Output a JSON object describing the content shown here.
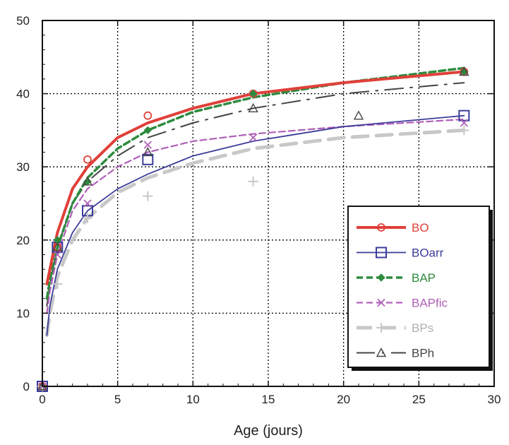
{
  "chart_data": {
    "type": "line",
    "title": "",
    "xlabel": "Age (jours)",
    "ylabel": "",
    "xlim": [
      0,
      30
    ],
    "ylim": [
      0,
      50
    ],
    "xticks": [
      0,
      5,
      10,
      15,
      20,
      25,
      30
    ],
    "yticks": [
      0,
      10,
      20,
      30,
      40,
      50
    ],
    "grid": true,
    "legend_position": "bottom-right",
    "series": [
      {
        "name": "BO",
        "color": "#e0403a",
        "dash": "solid",
        "marker": "circle",
        "points": [
          [
            0,
            0
          ],
          [
            1,
            19
          ],
          [
            3,
            31
          ],
          [
            7,
            37
          ],
          [
            14,
            40
          ],
          [
            28,
            43
          ]
        ],
        "fit": [
          [
            0.3,
            14
          ],
          [
            0.5,
            16
          ],
          [
            1,
            21
          ],
          [
            2,
            27
          ],
          [
            3,
            30
          ],
          [
            5,
            34
          ],
          [
            7,
            36
          ],
          [
            10,
            38
          ],
          [
            14,
            40
          ],
          [
            20,
            41.5
          ],
          [
            28,
            43
          ]
        ]
      },
      {
        "name": "BOarr",
        "color": "#3b3b9a",
        "dash": "solid",
        "marker": "square",
        "points": [
          [
            0,
            0
          ],
          [
            1,
            19
          ],
          [
            3,
            24
          ],
          [
            7,
            31
          ],
          [
            28,
            37
          ]
        ],
        "fit": [
          [
            0.3,
            7
          ],
          [
            0.5,
            11
          ],
          [
            1,
            16
          ],
          [
            2,
            21
          ],
          [
            3,
            24
          ],
          [
            5,
            27
          ],
          [
            7,
            29
          ],
          [
            10,
            31.5
          ],
          [
            14,
            33.5
          ],
          [
            20,
            35.5
          ],
          [
            28,
            37
          ]
        ]
      },
      {
        "name": "BAP",
        "color": "#2e8b3e",
        "dash": "dashed",
        "marker": "diamond",
        "points": [
          [
            0,
            0
          ],
          [
            1,
            20
          ],
          [
            3,
            28
          ],
          [
            7,
            35
          ],
          [
            14,
            40
          ],
          [
            28,
            43
          ]
        ],
        "fit": [
          [
            0.3,
            12
          ],
          [
            0.5,
            14.5
          ],
          [
            1,
            19
          ],
          [
            2,
            25
          ],
          [
            3,
            28.5
          ],
          [
            5,
            32.5
          ],
          [
            7,
            35
          ],
          [
            10,
            37.5
          ],
          [
            14,
            39.5
          ],
          [
            20,
            41.5
          ],
          [
            28,
            43.5
          ]
        ]
      },
      {
        "name": "BAPfic",
        "color": "#b060b8",
        "dash": "dashed",
        "marker": "cross",
        "points": [
          [
            0,
            0
          ],
          [
            1,
            18
          ],
          [
            3,
            25
          ],
          [
            7,
            33
          ],
          [
            14,
            34
          ],
          [
            28,
            36
          ]
        ],
        "fit": [
          [
            0.3,
            10
          ],
          [
            0.5,
            13
          ],
          [
            1,
            18
          ],
          [
            2,
            24
          ],
          [
            3,
            27
          ],
          [
            5,
            30
          ],
          [
            7,
            32
          ],
          [
            10,
            33.5
          ],
          [
            14,
            34.5
          ],
          [
            20,
            35.5
          ],
          [
            28,
            36.5
          ]
        ]
      },
      {
        "name": "BPs",
        "color": "#c8c8c8",
        "dash": "longdash",
        "marker": "plus",
        "points": [
          [
            0,
            0
          ],
          [
            1,
            14
          ],
          [
            3,
            23
          ],
          [
            7,
            26
          ],
          [
            14,
            28
          ],
          [
            28,
            35
          ]
        ],
        "fit": [
          [
            0.3,
            7
          ],
          [
            0.5,
            10
          ],
          [
            1,
            15
          ],
          [
            2,
            20
          ],
          [
            3,
            23
          ],
          [
            5,
            26.5
          ],
          [
            7,
            28.5
          ],
          [
            10,
            30.5
          ],
          [
            14,
            32.5
          ],
          [
            20,
            34
          ],
          [
            28,
            35
          ]
        ]
      },
      {
        "name": "BPh",
        "color": "#444444",
        "dash": "dashdot",
        "marker": "triangle",
        "points": [
          [
            0,
            0
          ],
          [
            1,
            19
          ],
          [
            3,
            28
          ],
          [
            7,
            32
          ],
          [
            14,
            38
          ],
          [
            21,
            37
          ],
          [
            28,
            43
          ]
        ],
        "fit": [
          [
            0.3,
            11
          ],
          [
            0.5,
            14
          ],
          [
            1,
            19
          ],
          [
            2,
            25
          ],
          [
            3,
            28
          ],
          [
            5,
            31.5
          ],
          [
            7,
            34
          ],
          [
            10,
            36
          ],
          [
            14,
            38
          ],
          [
            20,
            40
          ],
          [
            28,
            41.5
          ]
        ]
      }
    ]
  }
}
